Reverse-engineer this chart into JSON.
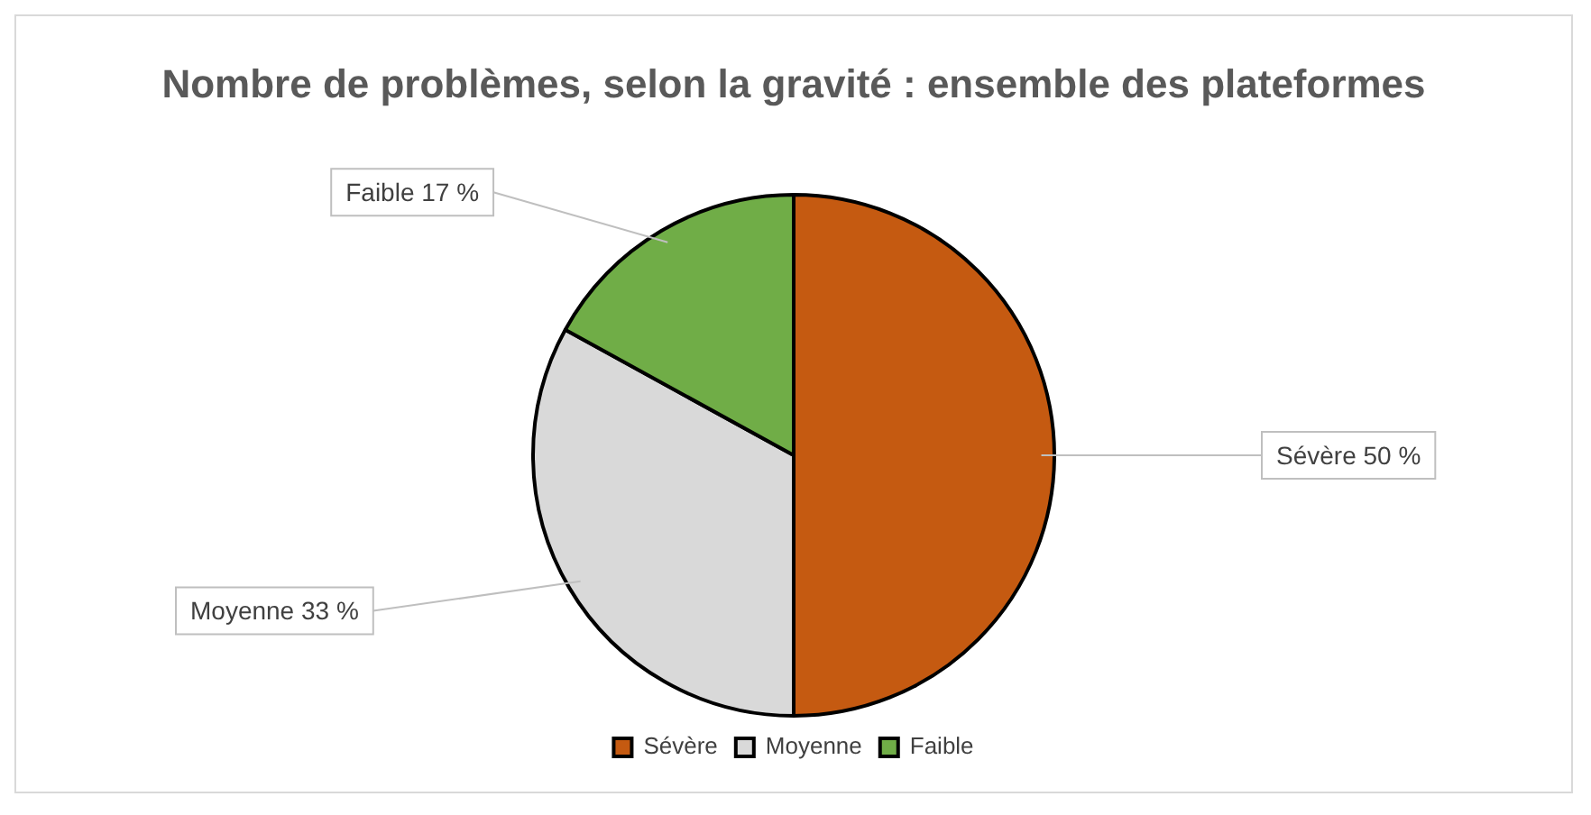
{
  "chart_data": {
    "type": "pie",
    "title": "Nombre de problèmes, selon la gravité : ensemble des plateformes",
    "categories": [
      "Sévère",
      "Moyenne",
      "Faible"
    ],
    "values": [
      50,
      33,
      17
    ],
    "colors": [
      "#c55a11",
      "#d9d9d9",
      "#70ad47"
    ],
    "value_labels": [
      "Sévère 50 %",
      "Moyenne 33 %",
      "Faible 17 %"
    ],
    "legend": "bottom"
  }
}
